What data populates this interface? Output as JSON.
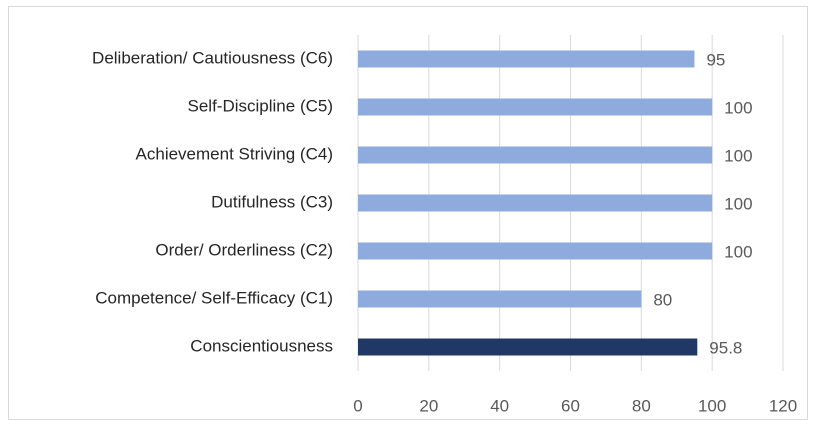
{
  "chart_data": {
    "type": "bar",
    "orientation": "horizontal",
    "categories": [
      "Conscientiousness",
      "Competence/ Self-Efficacy (C1)",
      "Order/ Orderliness  (C2)",
      "Dutifulness (C3)",
      "Achievement Striving (C4)",
      "Self-Discipline (C5)",
      "Deliberation/ Cautiousness (C6)"
    ],
    "values": [
      95.8,
      80,
      100,
      100,
      100,
      100,
      95
    ],
    "colors": [
      "#203864",
      "#8faadc",
      "#8faadc",
      "#8faadc",
      "#8faadc",
      "#8faadc",
      "#8faadc"
    ],
    "xlim": [
      0,
      120
    ],
    "xticks": [
      0,
      20,
      40,
      60,
      80,
      100,
      120
    ],
    "grid": true
  }
}
